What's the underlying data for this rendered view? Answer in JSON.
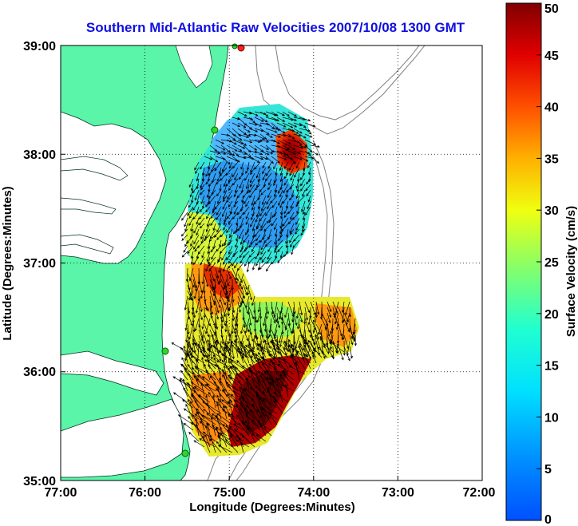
{
  "title": "Southern Mid-Atlantic Raw Velocities 2007/10/08 1300 GMT",
  "xlabel": "Longitude (Degrees:Minutes)",
  "ylabel": "Latitude (Degrees:Minutes)",
  "x_ticks": [
    "77:00",
    "76:00",
    "75:00",
    "74:00",
    "73:00",
    "72:00"
  ],
  "y_ticks": [
    "39:00",
    "38:00",
    "37:00",
    "36:00",
    "35:00"
  ],
  "colorbar": {
    "label": "Surface Velocity (cm/s)",
    "ticks": [
      "50",
      "45",
      "40",
      "35",
      "30",
      "25",
      "20",
      "15",
      "10",
      "5",
      "0"
    ],
    "min": 0,
    "max": 50,
    "unit": "cm/s"
  },
  "colors": {
    "land": "#5af5a8",
    "water": "#ffffff",
    "title": "#1010e0",
    "contour": "#808080",
    "vectors": "#000000",
    "station_marker": "#2fd62f",
    "station_marker_offscreen": "#ff2020"
  },
  "map": {
    "lon_range": [
      "77:00",
      "72:00"
    ],
    "lat_range": [
      "35:00",
      "39:00"
    ],
    "grid": "dotted"
  }
}
